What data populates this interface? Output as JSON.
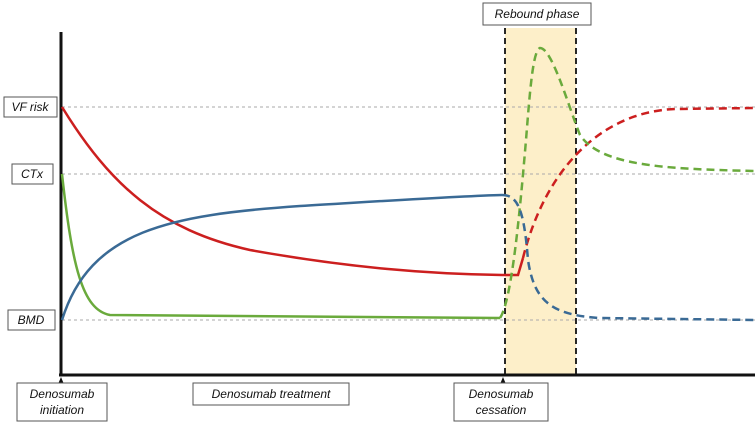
{
  "diagram": {
    "phase_label": "Rebound phase",
    "y_labels": {
      "vf_risk": "VF risk",
      "ctx": "CTx",
      "bmd": "BMD"
    },
    "events": {
      "initiation_line1": "Denosumab",
      "initiation_line2": "initiation",
      "treatment": "Denosumab treatment",
      "cessation_line1": "Denosumab",
      "cessation_line2": "cessation"
    },
    "curve_names": [
      "vf-risk-curve",
      "ctx-curve",
      "bmd-curve"
    ],
    "colors": {
      "vf_risk": "#cc1f1f",
      "ctx": "#6aaa3c",
      "bmd": "#3a6a95",
      "rebound_band": "#fdefc9",
      "axis": "#111111",
      "reference": "#aaaaaa"
    }
  }
}
